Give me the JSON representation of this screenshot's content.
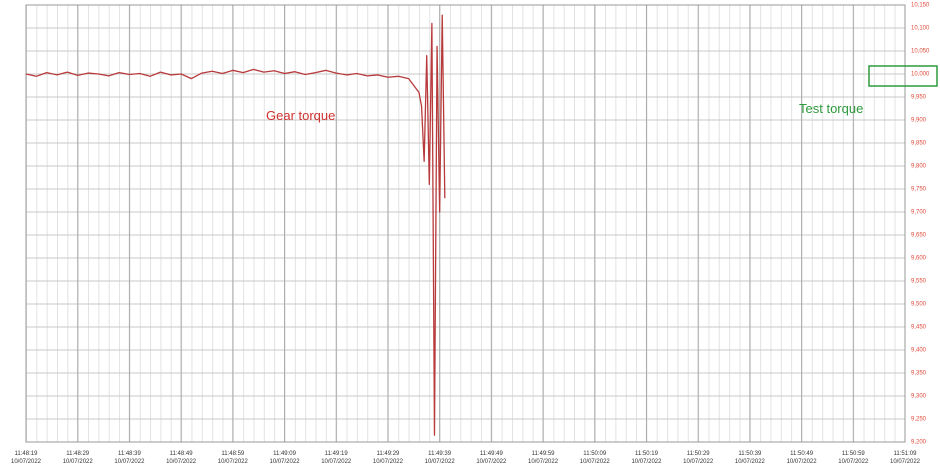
{
  "chart_data": {
    "type": "line",
    "annotations": [
      "Gear torque",
      "Test torque"
    ],
    "annotation_colors": [
      "#d0302f",
      "#2e9a3c"
    ],
    "xlim": [
      "11:48:19",
      "11:51:09"
    ],
    "xticks": [
      "11:48:19",
      "11:48:29",
      "11:48:39",
      "11:48:49",
      "11:48:59",
      "11:49:09",
      "11:49:19",
      "11:49:29",
      "11:49:39",
      "11:49:49",
      "11:49:59",
      "11:50:09",
      "11:50:19",
      "11:50:29",
      "11:50:39",
      "11:50:49",
      "11:50:59",
      "11:51:09"
    ],
    "xtick_dates": [
      "10/07/2022",
      "10/07/2022",
      "10/07/2022",
      "10/07/2022",
      "10/07/2022",
      "10/07/2022",
      "10/07/2022",
      "10/07/2022",
      "10/07/2022",
      "10/07/2022",
      "10/07/2022",
      "10/07/2022",
      "10/07/2022",
      "10/07/2022",
      "10/07/2022",
      "10/07/2022",
      "10/07/2022",
      "10/07/2022"
    ],
    "ylim": [
      9200,
      10150
    ],
    "yticks": [
      {
        "value": 9200,
        "label": "9,200"
      },
      {
        "value": 9250,
        "label": "9,250"
      },
      {
        "value": 9300,
        "label": "9,300"
      },
      {
        "value": 9350,
        "label": "9,350"
      },
      {
        "value": 9400,
        "label": "9,400"
      },
      {
        "value": 9450,
        "label": "9,450"
      },
      {
        "value": 9500,
        "label": "9,500"
      },
      {
        "value": 9550,
        "label": "9,550"
      },
      {
        "value": 9600,
        "label": "9,600"
      },
      {
        "value": 9650,
        "label": "9,650"
      },
      {
        "value": 9700,
        "label": "9,700"
      },
      {
        "value": 9750,
        "label": "9,750"
      },
      {
        "value": 9800,
        "label": "9,800"
      },
      {
        "value": 9850,
        "label": "9,850"
      },
      {
        "value": 9900,
        "label": "9,900"
      },
      {
        "value": 9950,
        "label": "9,950"
      },
      {
        "value": 10000,
        "label": "10,000"
      },
      {
        "value": 10050,
        "label": "10,050"
      },
      {
        "value": 10100,
        "label": "10,100"
      },
      {
        "value": 10150,
        "label": "10,150"
      }
    ],
    "grid": true,
    "series": [
      {
        "color": "#b8393b",
        "x": [
          "11:48:19",
          "11:48:21",
          "11:48:23",
          "11:48:25",
          "11:48:27",
          "11:48:29",
          "11:48:31",
          "11:48:33",
          "11:48:35",
          "11:48:37",
          "11:48:39",
          "11:48:41",
          "11:48:43",
          "11:48:45",
          "11:48:47",
          "11:48:49",
          "11:48:51",
          "11:48:53",
          "11:48:55",
          "11:48:57",
          "11:48:59",
          "11:49:01",
          "11:49:03",
          "11:49:05",
          "11:49:07",
          "11:49:09",
          "11:49:11",
          "11:49:13",
          "11:49:15",
          "11:49:17",
          "11:49:19",
          "11:49:21",
          "11:49:23",
          "11:49:25",
          "11:49:27",
          "11:49:29",
          "11:49:31",
          "11:49:33",
          "11:49:35",
          "11:49:35.5",
          "11:49:36",
          "11:49:36.5",
          "11:49:37",
          "11:49:37.5",
          "11:49:38",
          "11:49:38.5",
          "11:49:39",
          "11:49:39.5",
          "11:49:40"
        ],
        "values": [
          10000,
          9995,
          10003,
          9998,
          10004,
          9997,
          10002,
          10000,
          9996,
          10003,
          9999,
          10001,
          9995,
          10004,
          9998,
          10000,
          9990,
          10002,
          10006,
          10001,
          10008,
          10003,
          10010,
          10004,
          10007,
          10001,
          10005,
          9999,
          10003,
          10008,
          10002,
          9998,
          10001,
          9996,
          9998,
          9993,
          9995,
          9990,
          9960,
          9930,
          9810,
          10040,
          9760,
          10110,
          9215,
          10060,
          9700,
          10128,
          9730
        ]
      }
    ]
  }
}
